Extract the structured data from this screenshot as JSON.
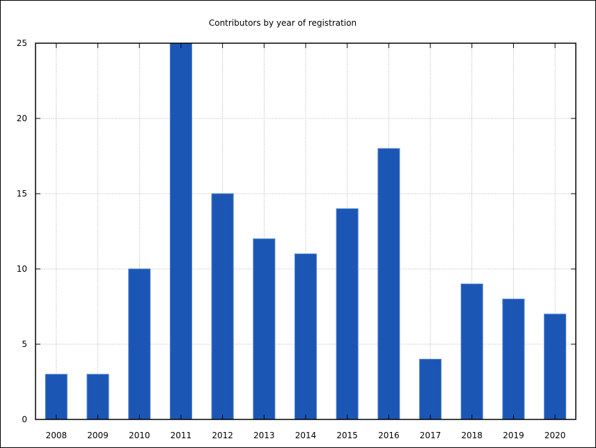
{
  "chart_data": {
    "type": "bar",
    "title": "Contributors by year of registration",
    "xlabel": "",
    "ylabel": "",
    "categories": [
      "2008",
      "2009",
      "2010",
      "2011",
      "2012",
      "2013",
      "2014",
      "2015",
      "2016",
      "2017",
      "2018",
      "2019",
      "2020"
    ],
    "values": [
      3,
      3,
      10,
      25,
      15,
      12,
      11,
      14,
      18,
      4,
      9,
      8,
      7
    ],
    "ylim": [
      0,
      25
    ],
    "yticks": [
      0,
      5,
      10,
      15,
      20,
      25
    ],
    "grid": true,
    "legend": "none",
    "colors": {
      "bar_fill": "#1c56b5",
      "bar_edge": "#4a7fd0",
      "grid": "#a0a0a0",
      "axis": "#000000"
    }
  }
}
